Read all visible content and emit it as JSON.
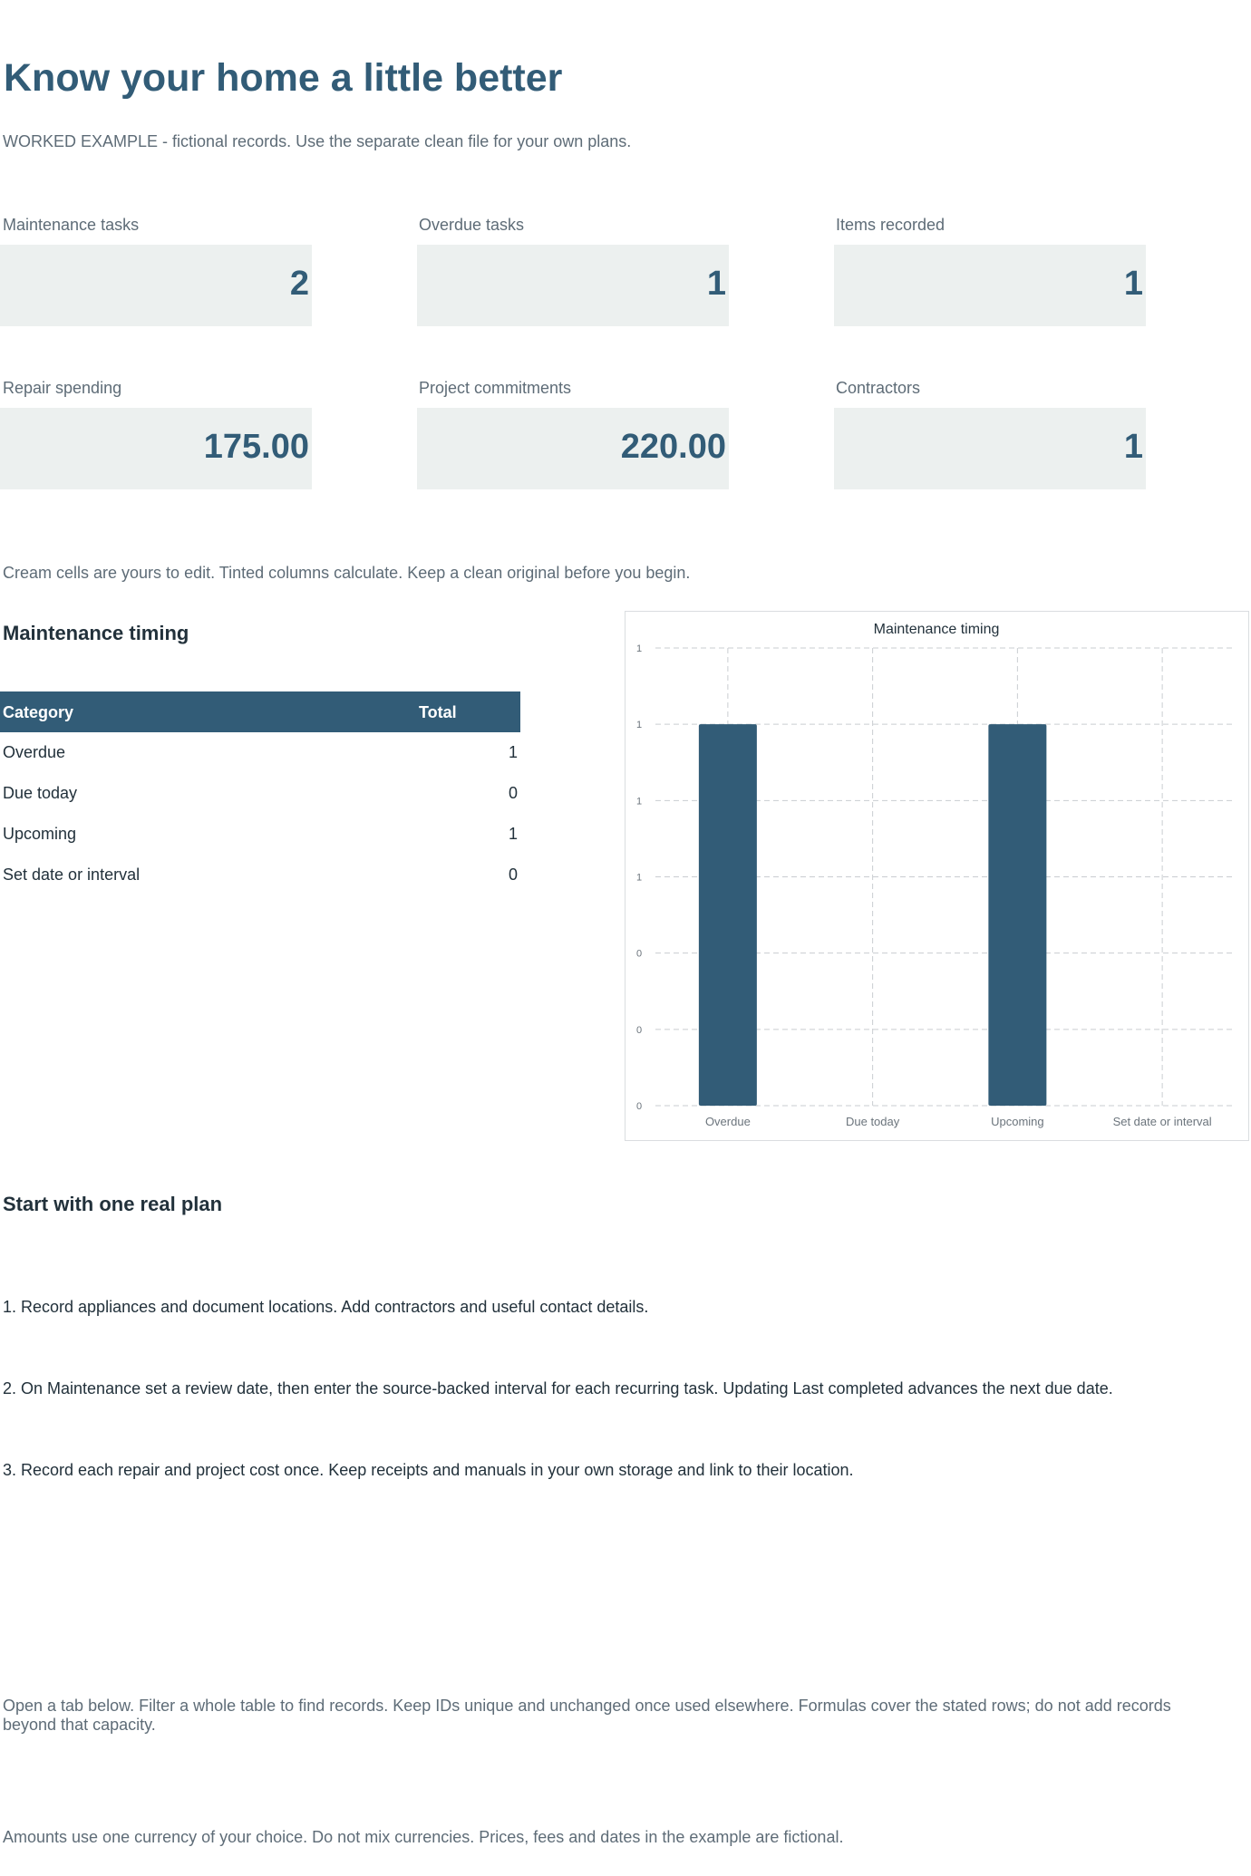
{
  "header": {
    "title": "Know your home a little better",
    "subtitle": "WORKED EXAMPLE - fictional records. Use the separate clean file for your own plans."
  },
  "kpis": [
    {
      "label": "Maintenance tasks",
      "value": "2"
    },
    {
      "label": "Overdue tasks",
      "value": "1"
    },
    {
      "label": "Items recorded",
      "value": "1"
    },
    {
      "label": "Repair spending",
      "value": "175.00"
    },
    {
      "label": "Project commitments",
      "value": "220.00"
    },
    {
      "label": "Contractors",
      "value": "1"
    }
  ],
  "edit_note": "Cream cells are yours to edit. Tinted columns calculate. Keep a clean original before you begin.",
  "timing_section": {
    "heading": "Maintenance timing",
    "table": {
      "headers": [
        "Category",
        "Total"
      ],
      "rows": [
        {
          "category": "Overdue",
          "total": "1"
        },
        {
          "category": "Due today",
          "total": "0"
        },
        {
          "category": "Upcoming",
          "total": "1"
        },
        {
          "category": "Set date or interval",
          "total": "0"
        }
      ]
    }
  },
  "chart_data": {
    "type": "bar",
    "title": "Maintenance timing",
    "categories": [
      "Overdue",
      "Due today",
      "Upcoming",
      "Set date or interval"
    ],
    "values": [
      1,
      0,
      1,
      0
    ],
    "ylim": [
      0,
      1.2
    ],
    "yticks": [
      0,
      0.2,
      0.4,
      0.6,
      0.8,
      1.0,
      1.2
    ],
    "ytick_labels": [
      "0",
      "0",
      "0",
      "1",
      "1",
      "1",
      "1"
    ],
    "grid": true,
    "grid_style": "dashed",
    "bar_color": "#325c77",
    "xlabel": "",
    "ylabel": ""
  },
  "plan_section": {
    "heading": "Start with one real plan",
    "steps": [
      "1. Record appliances and document locations. Add contractors and useful contact details.",
      "2. On Maintenance set a review date, then enter the source-backed interval for each recurring task. Updating Last completed advances the next due date.",
      "3. Record each repair and project cost once. Keep receipts and manuals in your own storage and link to their location."
    ]
  },
  "footer_notes": [
    "Open a tab below. Filter a whole table to find records. Keep IDs unique and unchanged once used elsewhere. Formulas cover the stated rows; do not add records beyond that capacity.",
    "Amounts use one currency of your choice. Do not mix currencies. Prices, fees and dates in the example are fictional."
  ],
  "colors": {
    "accent": "#325c77",
    "kpi_background": "#ecf0ef",
    "muted_text": "#5e6c77"
  }
}
